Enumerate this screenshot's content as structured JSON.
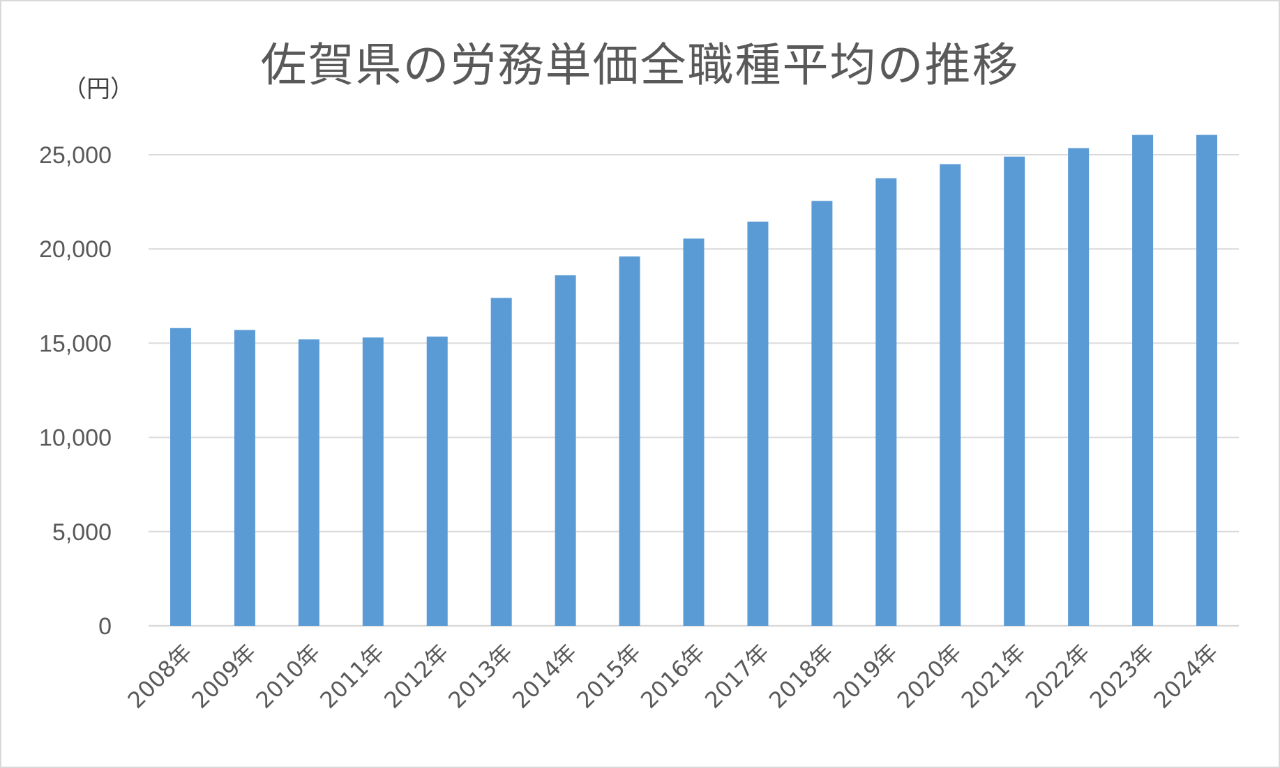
{
  "chart_data": {
    "type": "bar",
    "title": "佐賀県の労務単価全職種平均の推移",
    "unit_label": "（円）",
    "categories": [
      "2008年",
      "2009年",
      "2010年",
      "2011年",
      "2012年",
      "2013年",
      "2014年",
      "2015年",
      "2016年",
      "2017年",
      "2018年",
      "2019年",
      "2020年",
      "2021年",
      "2022年",
      "2023年",
      "2024年"
    ],
    "values": [
      15800,
      15700,
      15200,
      15300,
      15350,
      17400,
      18600,
      19600,
      20550,
      21450,
      22550,
      23750,
      24500,
      24900,
      25350,
      26050,
      26050
    ],
    "ylim": [
      0,
      25000
    ],
    "yticks": [
      "0",
      "5,000",
      "10,000",
      "15,000",
      "20,000",
      "25,000"
    ],
    "ytick_values": [
      0,
      5000,
      10000,
      15000,
      20000,
      25000
    ],
    "bar_color": "#5b9bd5",
    "grid_color": "#d9d9d9",
    "grid": true,
    "legend": "none"
  }
}
